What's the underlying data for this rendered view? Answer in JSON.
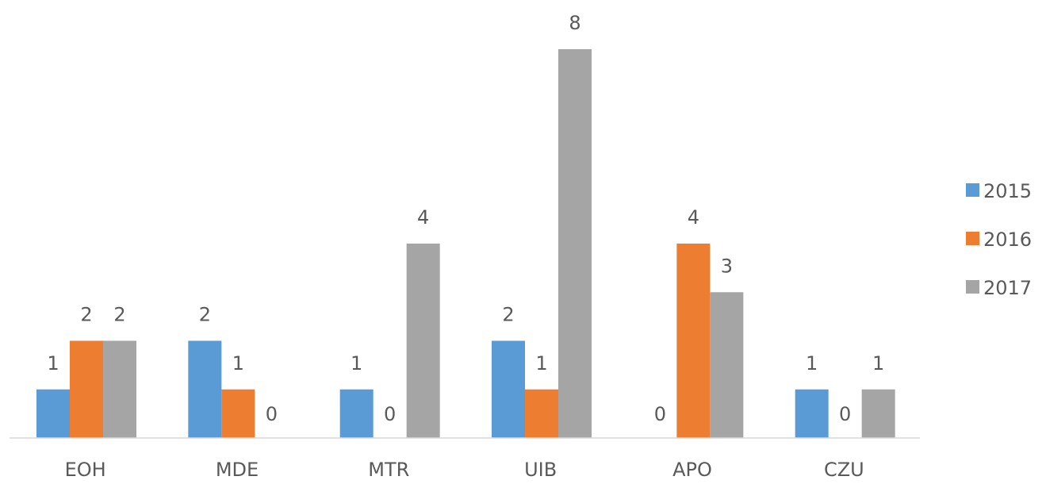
{
  "chart_data": {
    "type": "bar",
    "categories": [
      "EOH",
      "MDE",
      "MTR",
      "UIB",
      "APO",
      "CZU"
    ],
    "series": [
      {
        "name": "2015",
        "color": "#5b9bd5",
        "values": [
          1,
          2,
          1,
          2,
          0,
          1
        ]
      },
      {
        "name": "2016",
        "color": "#ed7d31",
        "values": [
          2,
          1,
          0,
          1,
          4,
          0
        ]
      },
      {
        "name": "2017",
        "color": "#a5a5a5",
        "values": [
          2,
          0,
          4,
          8,
          3,
          1
        ]
      }
    ],
    "title": "",
    "xlabel": "",
    "ylabel": "",
    "ylim": [
      0,
      8
    ],
    "grid": false,
    "data_labels": true,
    "legend_position": "right",
    "axis_color": "#d9d9d9"
  }
}
